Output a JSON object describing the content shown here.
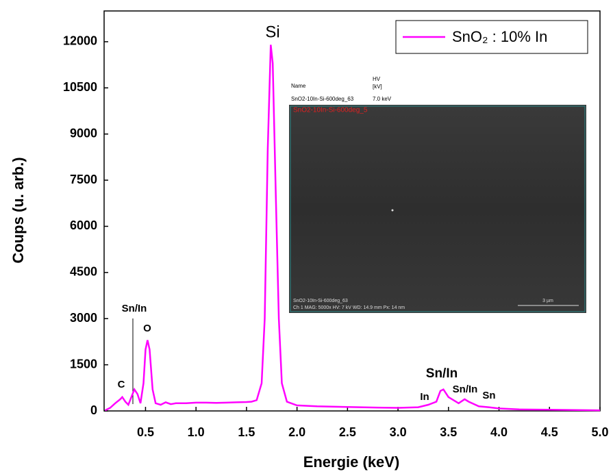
{
  "chart_data": {
    "type": "line",
    "xlabel": "Energie (keV)",
    "ylabel": "Coups (u. arb.)",
    "x": [
      0.1,
      0.15,
      0.2,
      0.25,
      0.27,
      0.3,
      0.33,
      0.36,
      0.39,
      0.42,
      0.45,
      0.48,
      0.5,
      0.52,
      0.54,
      0.57,
      0.6,
      0.65,
      0.7,
      0.75,
      0.8,
      0.9,
      1.0,
      1.1,
      1.2,
      1.3,
      1.4,
      1.5,
      1.55,
      1.6,
      1.65,
      1.68,
      1.71,
      1.74,
      1.76,
      1.79,
      1.82,
      1.85,
      1.9,
      2.0,
      2.2,
      2.5,
      2.8,
      3.0,
      3.2,
      3.3,
      3.38,
      3.42,
      3.45,
      3.5,
      3.6,
      3.66,
      3.7,
      3.8,
      3.9,
      4.0,
      4.2,
      4.5,
      5.0
    ],
    "series": [
      {
        "name": "SnO₂ : 10% In",
        "color": "#ff00ff",
        "values": [
          20,
          100,
          250,
          380,
          450,
          300,
          200,
          450,
          700,
          550,
          250,
          900,
          2000,
          2300,
          2000,
          700,
          250,
          200,
          280,
          220,
          250,
          250,
          270,
          270,
          260,
          270,
          280,
          290,
          300,
          350,
          900,
          3000,
          8500,
          11900,
          11300,
          7000,
          3000,
          900,
          300,
          180,
          150,
          130,
          110,
          100,
          120,
          200,
          300,
          650,
          700,
          450,
          250,
          380,
          300,
          150,
          120,
          80,
          50,
          40,
          20
        ]
      }
    ],
    "xlim": [
      0.09,
      5.0
    ],
    "ylim": [
      0,
      13000
    ],
    "xticks": [
      0.5,
      {
        "value": 1,
        "label": "1.0"
      },
      1.5,
      {
        "value": 2,
        "label": "2.0"
      },
      2.5,
      {
        "value": 3,
        "label": "3.0"
      },
      3.5,
      {
        "value": 4,
        "label": "4.0"
      },
      4.5,
      {
        "value": 5,
        "label": "5.0"
      }
    ],
    "yticks": [
      0,
      1500,
      3000,
      4500,
      6000,
      7500,
      9000,
      10500,
      12000
    ],
    "annotations": [
      "Si",
      "C",
      "Sn/In",
      "O",
      "Sn/In",
      "In",
      "Sn/In",
      "Sn"
    ],
    "legend": "upper right"
  },
  "inset": {
    "header_name": "Name",
    "header_hv": "HV",
    "header_unit": "[kV]",
    "sample": "SnO2-10In-Si-600deg_63",
    "hv": "7.0 keV",
    "image_title": "SnO2-10In-Si-600deg_5",
    "footer_name": "SnO2-10In-Si-600deg_63",
    "footer_info": "Ch 1    MAG: 5000x    HV: 7 kV    WD: 14.9 mm    Px: 14 nm",
    "scale": "3 µm"
  }
}
